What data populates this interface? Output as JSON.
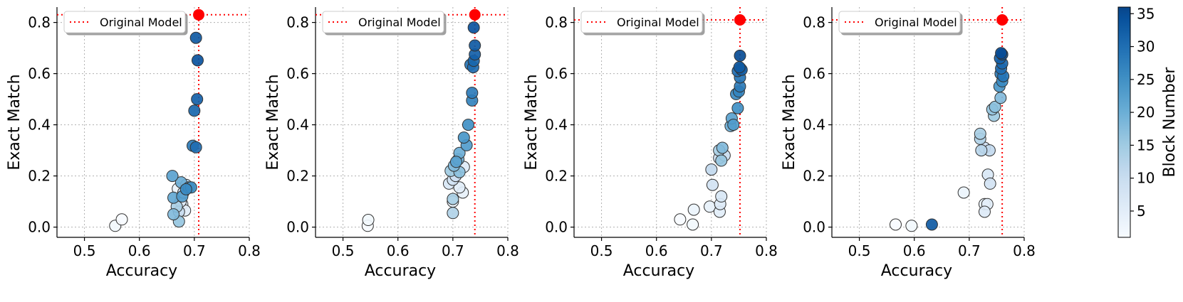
{
  "chart_data": {
    "type": "scatter",
    "xlabel": "Accuracy",
    "ylabel": "Exact Match",
    "xlim": [
      0.45,
      0.8
    ],
    "ylim": [
      -0.04,
      0.86
    ],
    "xticks": [
      0.5,
      0.6,
      0.7,
      0.8
    ],
    "xtick_labels": [
      "0.5",
      "0.6",
      "0.7",
      "0.8"
    ],
    "yticks": [
      0.0,
      0.2,
      0.4,
      0.6,
      0.8
    ],
    "ytick_labels": [
      "0.0",
      "0.2",
      "0.4",
      "0.6",
      "0.8"
    ],
    "grid": true,
    "legend_label": "Original Model",
    "legend_position": "top-left",
    "colorbar": {
      "label": "Block Number",
      "min": 1,
      "max": 36,
      "ticks": [
        5,
        10,
        15,
        20,
        25,
        30,
        35
      ],
      "tick_labels": [
        "5",
        "10",
        "15",
        "20",
        "25",
        "30",
        "35"
      ],
      "colormap": [
        "#f7fbff",
        "#deebf7",
        "#c6dbef",
        "#9ecae1",
        "#6baed6",
        "#4292c6",
        "#2171b5",
        "#08519c",
        "#08306b"
      ]
    },
    "colors": {
      "reference": "#ff0000",
      "marker_edge": "#333333",
      "grid": "#b0b0b0"
    },
    "panels": [
      {
        "original": {
          "x": 0.708,
          "y": 0.83
        },
        "points": [
          {
            "x": 0.556,
            "y": 0.005,
            "block": 2
          },
          {
            "x": 0.568,
            "y": 0.03,
            "block": 1
          },
          {
            "x": 0.67,
            "y": 0.15,
            "block": 3
          },
          {
            "x": 0.678,
            "y": 0.09,
            "block": 4
          },
          {
            "x": 0.683,
            "y": 0.065,
            "block": 5
          },
          {
            "x": 0.675,
            "y": 0.1,
            "block": 6
          },
          {
            "x": 0.68,
            "y": 0.135,
            "block": 8
          },
          {
            "x": 0.672,
            "y": 0.06,
            "block": 10
          },
          {
            "x": 0.685,
            "y": 0.165,
            "block": 12
          },
          {
            "x": 0.668,
            "y": 0.08,
            "block": 14
          },
          {
            "x": 0.672,
            "y": 0.022,
            "block": 16
          },
          {
            "x": 0.662,
            "y": 0.05,
            "block": 18
          },
          {
            "x": 0.676,
            "y": 0.175,
            "block": 20
          },
          {
            "x": 0.662,
            "y": 0.115,
            "block": 21
          },
          {
            "x": 0.66,
            "y": 0.2,
            "block": 22
          },
          {
            "x": 0.678,
            "y": 0.12,
            "block": 23
          },
          {
            "x": 0.69,
            "y": 0.155,
            "block": 24
          },
          {
            "x": 0.694,
            "y": 0.155,
            "block": 25
          },
          {
            "x": 0.685,
            "y": 0.148,
            "block": 26
          },
          {
            "x": 0.697,
            "y": 0.318,
            "block": 28
          },
          {
            "x": 0.703,
            "y": 0.312,
            "block": 30
          },
          {
            "x": 0.7,
            "y": 0.455,
            "block": 31
          },
          {
            "x": 0.705,
            "y": 0.5,
            "block": 32
          },
          {
            "x": 0.703,
            "y": 0.74,
            "block": 33
          },
          {
            "x": 0.706,
            "y": 0.652,
            "block": 34
          }
        ]
      },
      {
        "original": {
          "x": 0.74,
          "y": 0.83
        },
        "points": [
          {
            "x": 0.545,
            "y": 0.005,
            "block": 1
          },
          {
            "x": 0.546,
            "y": 0.028,
            "block": 2
          },
          {
            "x": 0.7,
            "y": 0.1,
            "block": 3
          },
          {
            "x": 0.718,
            "y": 0.135,
            "block": 4
          },
          {
            "x": 0.712,
            "y": 0.155,
            "block": 5
          },
          {
            "x": 0.72,
            "y": 0.235,
            "block": 6
          },
          {
            "x": 0.693,
            "y": 0.17,
            "block": 7
          },
          {
            "x": 0.7,
            "y": 0.185,
            "block": 8
          },
          {
            "x": 0.705,
            "y": 0.2,
            "block": 9
          },
          {
            "x": 0.7,
            "y": 0.055,
            "block": 13
          },
          {
            "x": 0.7,
            "y": 0.11,
            "block": 14
          },
          {
            "x": 0.696,
            "y": 0.22,
            "block": 15
          },
          {
            "x": 0.712,
            "y": 0.215,
            "block": 17
          },
          {
            "x": 0.702,
            "y": 0.24,
            "block": 18
          },
          {
            "x": 0.71,
            "y": 0.265,
            "block": 19
          },
          {
            "x": 0.712,
            "y": 0.29,
            "block": 20
          },
          {
            "x": 0.706,
            "y": 0.255,
            "block": 22
          },
          {
            "x": 0.725,
            "y": 0.32,
            "block": 23
          },
          {
            "x": 0.72,
            "y": 0.35,
            "block": 24
          },
          {
            "x": 0.728,
            "y": 0.4,
            "block": 25
          },
          {
            "x": 0.735,
            "y": 0.495,
            "block": 27
          },
          {
            "x": 0.735,
            "y": 0.525,
            "block": 28
          },
          {
            "x": 0.732,
            "y": 0.635,
            "block": 29
          },
          {
            "x": 0.737,
            "y": 0.625,
            "block": 30
          },
          {
            "x": 0.738,
            "y": 0.65,
            "block": 31
          },
          {
            "x": 0.74,
            "y": 0.675,
            "block": 32
          },
          {
            "x": 0.74,
            "y": 0.71,
            "block": 33
          },
          {
            "x": 0.738,
            "y": 0.78,
            "block": 34
          }
        ]
      },
      {
        "original": {
          "x": 0.752,
          "y": 0.81
        },
        "points": [
          {
            "x": 0.643,
            "y": 0.03,
            "block": 1
          },
          {
            "x": 0.666,
            "y": 0.01,
            "block": 2
          },
          {
            "x": 0.668,
            "y": 0.068,
            "block": 3
          },
          {
            "x": 0.697,
            "y": 0.08,
            "block": 4
          },
          {
            "x": 0.715,
            "y": 0.06,
            "block": 5
          },
          {
            "x": 0.716,
            "y": 0.09,
            "block": 6
          },
          {
            "x": 0.718,
            "y": 0.12,
            "block": 7
          },
          {
            "x": 0.702,
            "y": 0.165,
            "block": 8
          },
          {
            "x": 0.714,
            "y": 0.27,
            "block": 9
          },
          {
            "x": 0.724,
            "y": 0.28,
            "block": 10
          },
          {
            "x": 0.7,
            "y": 0.225,
            "block": 11
          },
          {
            "x": 0.714,
            "y": 0.3,
            "block": 14
          },
          {
            "x": 0.718,
            "y": 0.26,
            "block": 16
          },
          {
            "x": 0.72,
            "y": 0.31,
            "block": 18
          },
          {
            "x": 0.735,
            "y": 0.395,
            "block": 20
          },
          {
            "x": 0.737,
            "y": 0.425,
            "block": 22
          },
          {
            "x": 0.74,
            "y": 0.4,
            "block": 23
          },
          {
            "x": 0.748,
            "y": 0.465,
            "block": 25
          },
          {
            "x": 0.745,
            "y": 0.52,
            "block": 26
          },
          {
            "x": 0.75,
            "y": 0.53,
            "block": 27
          },
          {
            "x": 0.752,
            "y": 0.55,
            "block": 28
          },
          {
            "x": 0.752,
            "y": 0.585,
            "block": 29
          },
          {
            "x": 0.748,
            "y": 0.61,
            "block": 30
          },
          {
            "x": 0.753,
            "y": 0.62,
            "block": 31
          },
          {
            "x": 0.755,
            "y": 0.615,
            "block": 32
          },
          {
            "x": 0.751,
            "y": 0.625,
            "block": 33
          },
          {
            "x": 0.752,
            "y": 0.67,
            "block": 35
          }
        ]
      },
      {
        "original": {
          "x": 0.76,
          "y": 0.81
        },
        "points": [
          {
            "x": 0.566,
            "y": 0.01,
            "block": 1
          },
          {
            "x": 0.595,
            "y": 0.005,
            "block": 2
          },
          {
            "x": 0.632,
            "y": 0.01,
            "block": 33
          },
          {
            "x": 0.69,
            "y": 0.135,
            "block": 3
          },
          {
            "x": 0.728,
            "y": 0.09,
            "block": 4
          },
          {
            "x": 0.733,
            "y": 0.09,
            "block": 5
          },
          {
            "x": 0.728,
            "y": 0.06,
            "block": 6
          },
          {
            "x": 0.734,
            "y": 0.205,
            "block": 7
          },
          {
            "x": 0.738,
            "y": 0.17,
            "block": 8
          },
          {
            "x": 0.728,
            "y": 0.31,
            "block": 9
          },
          {
            "x": 0.737,
            "y": 0.3,
            "block": 11
          },
          {
            "x": 0.722,
            "y": 0.3,
            "block": 12
          },
          {
            "x": 0.72,
            "y": 0.345,
            "block": 13
          },
          {
            "x": 0.72,
            "y": 0.365,
            "block": 14
          },
          {
            "x": 0.745,
            "y": 0.435,
            "block": 15
          },
          {
            "x": 0.742,
            "y": 0.46,
            "block": 16
          },
          {
            "x": 0.747,
            "y": 0.47,
            "block": 17
          },
          {
            "x": 0.757,
            "y": 0.505,
            "block": 18
          },
          {
            "x": 0.755,
            "y": 0.55,
            "block": 24
          },
          {
            "x": 0.76,
            "y": 0.57,
            "block": 26
          },
          {
            "x": 0.757,
            "y": 0.6,
            "block": 28
          },
          {
            "x": 0.762,
            "y": 0.59,
            "block": 29
          },
          {
            "x": 0.758,
            "y": 0.62,
            "block": 30
          },
          {
            "x": 0.76,
            "y": 0.64,
            "block": 31
          },
          {
            "x": 0.756,
            "y": 0.66,
            "block": 32
          },
          {
            "x": 0.76,
            "y": 0.675,
            "block": 34
          },
          {
            "x": 0.758,
            "y": 0.68,
            "block": 35
          }
        ]
      }
    ]
  }
}
